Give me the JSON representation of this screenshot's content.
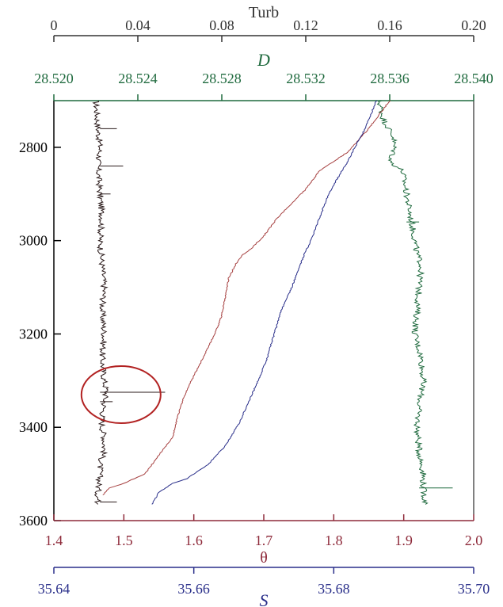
{
  "chart_data": {
    "type": "line",
    "colors": {
      "turb": "#2a1a1a",
      "density": "#1f6a3e",
      "theta": "#a64040",
      "salinity": "#2a2f8a",
      "turb_axis": "#333333",
      "density_axis": "#1f6a3e",
      "theta_axis": "#8e2a3a",
      "salinity_axis": "#2a2f8a",
      "depth_axis": "#000000",
      "annotation": "#b22222"
    },
    "y_axis": {
      "range": [
        2700,
        3600
      ],
      "inverted": true,
      "ticks": [
        2800,
        3000,
        3200,
        3400,
        3600
      ],
      "tick_labels": [
        "2800",
        "3000",
        "3200",
        "3400",
        "3600"
      ]
    },
    "axes": {
      "turb": {
        "label": "Turb",
        "range": [
          0,
          0.2
        ],
        "ticks": [
          0,
          0.04,
          0.08,
          0.12,
          0.16,
          0.2
        ],
        "tick_labels": [
          "0",
          "0.04",
          "0.08",
          "0.12",
          "0.16",
          "0.20"
        ]
      },
      "density": {
        "label": "D",
        "range": [
          28.52,
          28.54
        ],
        "ticks": [
          28.52,
          28.524,
          28.528,
          28.532,
          28.536,
          28.54
        ],
        "tick_labels": [
          "28.520",
          "28.524",
          "28.528",
          "28.532",
          "28.536",
          "28.540"
        ]
      },
      "theta": {
        "label": "θ",
        "range": [
          1.4,
          2.0
        ],
        "ticks": [
          1.4,
          1.5,
          1.6,
          1.7,
          1.8,
          1.9,
          2.0
        ],
        "tick_labels": [
          "1.4",
          "1.5",
          "1.6",
          "1.7",
          "1.8",
          "1.9",
          "2.0"
        ]
      },
      "salinity": {
        "label": "S",
        "range": [
          35.64,
          35.7
        ],
        "ticks": [
          35.64,
          35.66,
          35.68,
          35.7
        ],
        "tick_labels": [
          "35.64",
          "35.66",
          "35.68",
          "35.70"
        ]
      }
    },
    "series": [
      {
        "key": "turb",
        "x": [
          0.02,
          0.021,
          0.022,
          0.021,
          0.022,
          0.023,
          0.022,
          0.023,
          0.024,
          0.023,
          0.024,
          0.023,
          0.024,
          0.025,
          0.024,
          0.023,
          0.023,
          0.024,
          0.024,
          0.022,
          0.022,
          0.021,
          0.021
        ],
        "y": [
          2700,
          2760,
          2800,
          2840,
          2900,
          2950,
          3000,
          3050,
          3100,
          3150,
          3200,
          3250,
          3300,
          3320,
          3350,
          3380,
          3400,
          3420,
          3450,
          3480,
          3500,
          3540,
          3565
        ]
      },
      {
        "key": "density",
        "x": [
          28.5355,
          28.5357,
          28.5362,
          28.5362,
          28.536,
          28.5366,
          28.5368,
          28.537,
          28.5372,
          28.5373,
          28.5375,
          28.5374,
          28.5373,
          28.5372,
          28.5375,
          28.5376,
          28.5374,
          28.5373,
          28.5374,
          28.5376,
          28.5376,
          28.5377
        ],
        "y": [
          2700,
          2740,
          2780,
          2810,
          2830,
          2850,
          2900,
          2950,
          3000,
          3030,
          3050,
          3100,
          3150,
          3200,
          3250,
          3300,
          3350,
          3400,
          3450,
          3500,
          3530,
          3565
        ]
      },
      {
        "key": "theta",
        "x": [
          1.88,
          1.85,
          1.82,
          1.8,
          1.78,
          1.76,
          1.74,
          1.72,
          1.7,
          1.68,
          1.67,
          1.66,
          1.65,
          1.645,
          1.64,
          1.63,
          1.62,
          1.61,
          1.6,
          1.59,
          1.58,
          1.57,
          1.55,
          1.53,
          1.5,
          1.48,
          1.47
        ],
        "y": [
          2700,
          2760,
          2810,
          2830,
          2850,
          2890,
          2920,
          2950,
          2990,
          3020,
          3030,
          3050,
          3080,
          3120,
          3160,
          3200,
          3230,
          3260,
          3290,
          3320,
          3360,
          3420,
          3460,
          3500,
          3520,
          3530,
          3545
        ]
      },
      {
        "key": "salinity",
        "x": [
          35.6861,
          35.6845,
          35.683,
          35.682,
          35.6812,
          35.68,
          35.679,
          35.678,
          35.677,
          35.6758,
          35.675,
          35.674,
          35.6725,
          35.6715,
          35.6705,
          35.6695,
          35.668,
          35.6665,
          35.6645,
          35.662,
          35.659,
          35.657,
          35.655,
          35.654
        ],
        "y": [
          2700,
          2760,
          2800,
          2830,
          2850,
          2880,
          2910,
          2950,
          2990,
          3030,
          3060,
          3100,
          3150,
          3200,
          3250,
          3290,
          3340,
          3390,
          3440,
          3480,
          3510,
          3520,
          3540,
          3565
        ]
      }
    ],
    "annotations": [
      {
        "type": "ellipse",
        "target": "turb-anomaly",
        "x": 0.032,
        "y": 3330
      }
    ]
  }
}
